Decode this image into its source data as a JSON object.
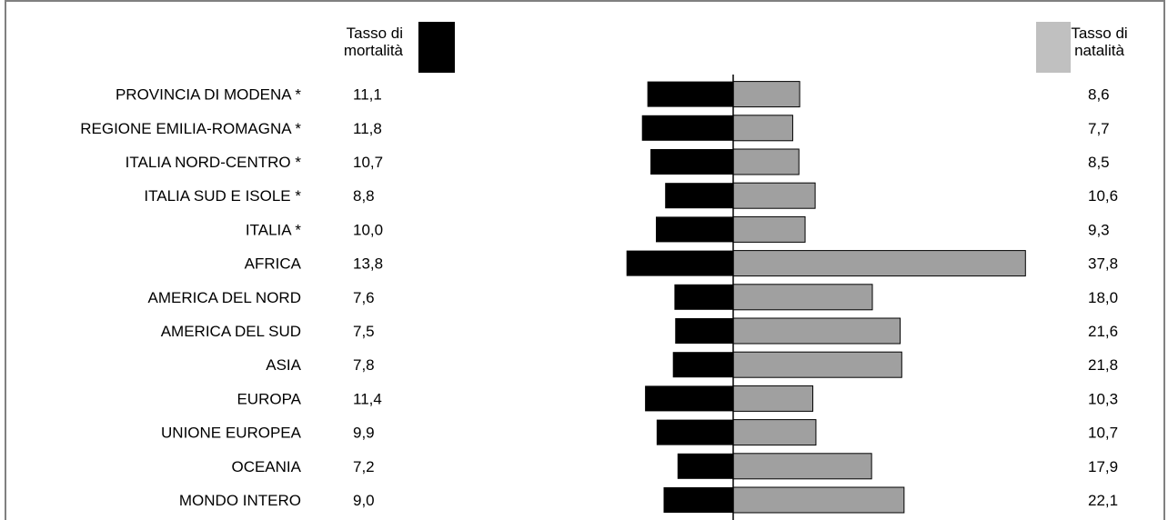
{
  "chart_data": {
    "type": "bar",
    "orientation": "horizontal-diverging",
    "categories": [
      "PROVINCIA DI MODENA *",
      "REGIONE EMILIA-ROMAGNA *",
      "ITALIA NORD-CENTRO *",
      "ITALIA SUD E ISOLE *",
      "ITALIA *",
      "AFRICA",
      "AMERICA DEL NORD",
      "AMERICA DEL SUD",
      "ASIA",
      "EUROPA",
      "UNIONE EUROPEA",
      "OCEANIA",
      "MONDO INTERO"
    ],
    "series": [
      {
        "name": "Tasso di mortalità",
        "color": "#000000",
        "values": [
          11.1,
          11.8,
          10.7,
          8.8,
          10.0,
          13.8,
          7.6,
          7.5,
          7.8,
          11.4,
          9.9,
          7.2,
          9.0
        ],
        "labels": [
          "11,1",
          "11,8",
          "10,7",
          "8,8",
          "10,0",
          "13,8",
          "7,6",
          "7,5",
          "7,8",
          "11,4",
          "9,9",
          "7,2",
          "9,0"
        ]
      },
      {
        "name": "Tasso di natalità",
        "color": "#a0a0a0",
        "values": [
          8.6,
          7.7,
          8.5,
          10.6,
          9.3,
          37.8,
          18.0,
          21.6,
          21.8,
          10.3,
          10.7,
          17.9,
          22.1
        ],
        "labels": [
          "8,6",
          "7,7",
          "8,5",
          "10,6",
          "9,3",
          "37,8",
          "18,0",
          "21,6",
          "21,8",
          "10,3",
          "10,7",
          "17,9",
          "22,1"
        ]
      }
    ],
    "legend": {
      "mortality_line1": "Tasso di",
      "mortality_line2": "mortalità",
      "natality_line1": "Tasso di",
      "natality_line2": "natalità"
    },
    "grid": false
  }
}
